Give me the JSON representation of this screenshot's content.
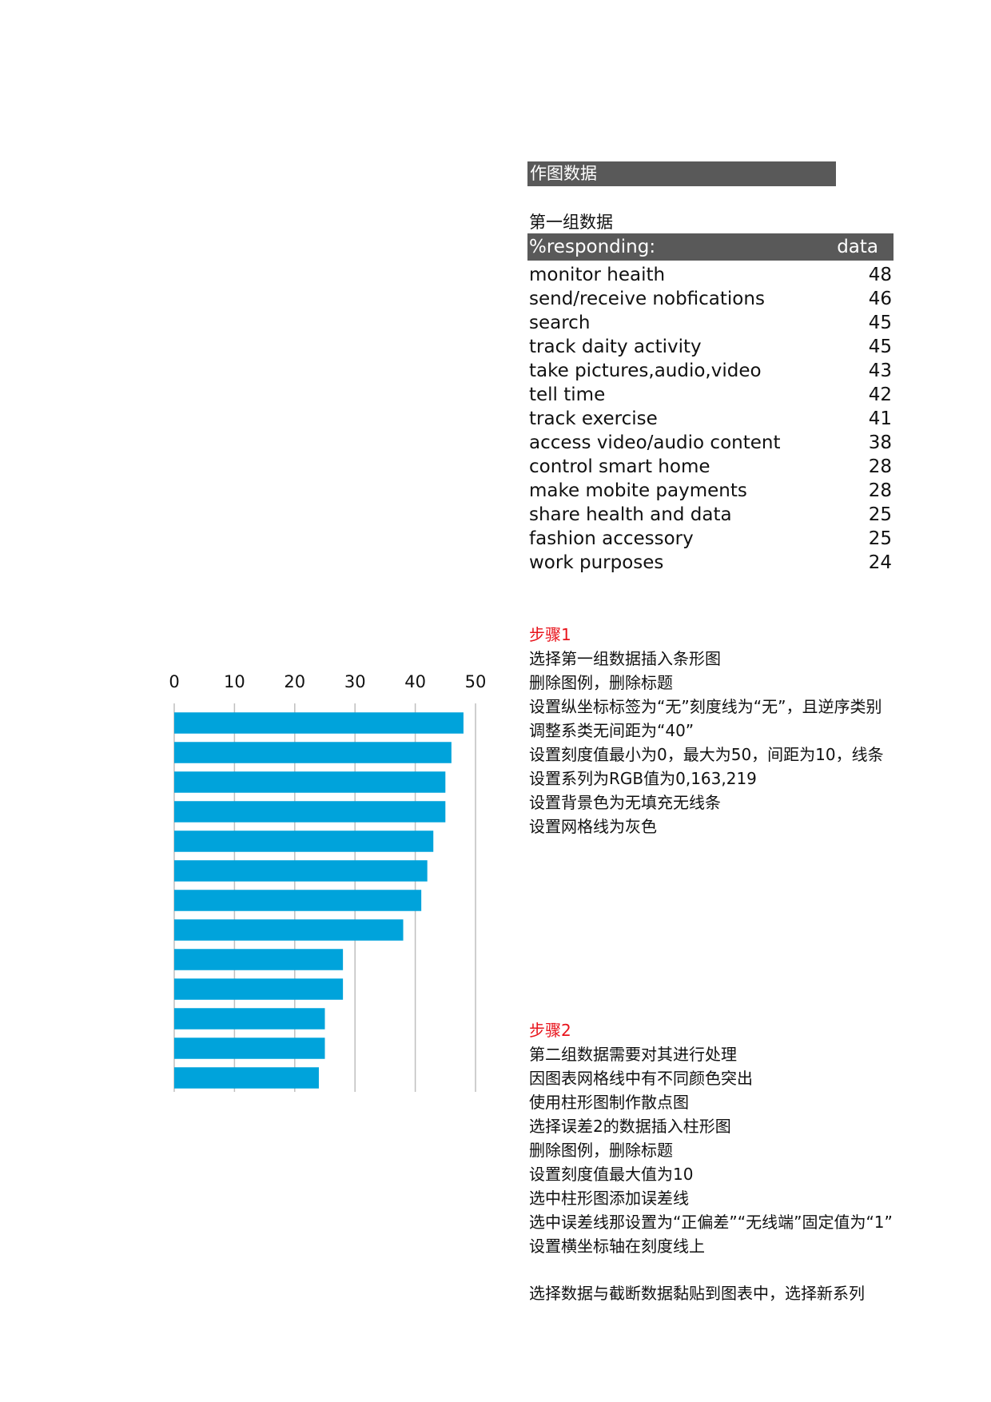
{
  "section_title": "作图数据",
  "group_title": "第一组数据",
  "table": {
    "header_label": "%responding:",
    "header_value": "data",
    "rows": [
      {
        "label": "monitor heaith",
        "value": "48"
      },
      {
        "label": "send/receive nobfications",
        "value": "46"
      },
      {
        "label": "search",
        "value": "45"
      },
      {
        "label": "track daity activity",
        "value": "45"
      },
      {
        "label": "take pictures,audio,video",
        "value": "43"
      },
      {
        "label": "tell time",
        "value": "42"
      },
      {
        "label": "track exercise",
        "value": "41"
      },
      {
        "label": "access video/audio content",
        "value": "38"
      },
      {
        "label": "control smart home",
        "value": "28"
      },
      {
        "label": "make mobite payments",
        "value": "28"
      },
      {
        "label": "share health and data",
        "value": "25"
      },
      {
        "label": "fashion accessory",
        "value": "25"
      },
      {
        "label": "work purposes",
        "value": "24"
      }
    ]
  },
  "step1": {
    "heading": "步骤1",
    "lines": [
      "选择第一组数据插入条形图",
      "删除图例，删除标题",
      "设置纵坐标标签为“无”刻度线为“无”，且逆序类别",
      "调整系类无间距为“40”",
      "设置刻度值最小为0，最大为50，间距为10，线条",
      "设置系列为RGB值为0,163,219",
      "设置背景色为无填充无线条",
      "设置网格线为灰色"
    ]
  },
  "step2": {
    "heading": "步骤2",
    "lines": [
      "第二组数据需要对其进行处理",
      "因图表网格线中有不同颜色突出",
      "使用柱形图制作散点图",
      "选择误差2的数据插入柱形图",
      "删除图例，删除标题",
      "设置刻度值最大值为10",
      "选中柱形图添加误差线",
      "选中误差线那设置为“正偏差”“无线端”固定值为“1”",
      "设置横坐标轴在刻度线上",
      "",
      "选择数据与截断数据黏贴到图表中，选择新系列"
    ]
  },
  "chart_data": {
    "type": "bar",
    "orientation": "horizontal",
    "categories": [
      "monitor heaith",
      "send/receive nobfications",
      "search",
      "track daity activity",
      "take pictures,audio,video",
      "tell time",
      "track exercise",
      "access video/audio content",
      "control smart home",
      "make mobite payments",
      "share health and data",
      "fashion accessory",
      "work purposes"
    ],
    "values": [
      48,
      46,
      45,
      45,
      43,
      42,
      41,
      38,
      28,
      28,
      25,
      25,
      24
    ],
    "xlim": [
      0,
      50
    ],
    "x_ticks": [
      0,
      10,
      20,
      30,
      40,
      50
    ],
    "x_axis_position": "top",
    "category_labels_shown": false,
    "grid": true,
    "grid_color": "#bfbfbf",
    "bar_color": "#00a3db",
    "legend": "none",
    "title": ""
  }
}
